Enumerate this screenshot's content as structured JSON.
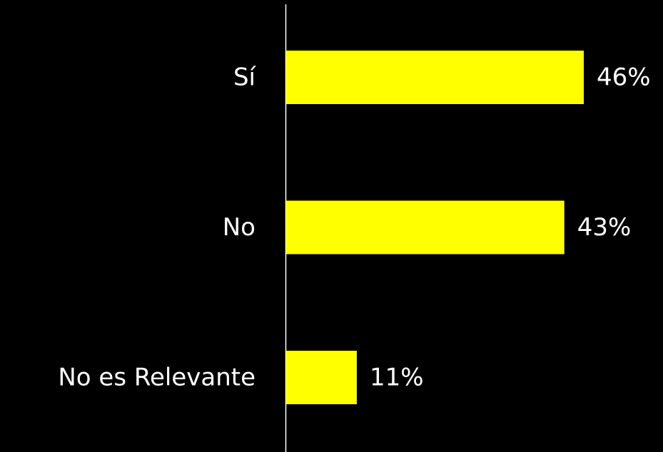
{
  "chart_data": {
    "type": "bar",
    "orientation": "horizontal",
    "categories": [
      "Sí",
      "No",
      "No es Relevante"
    ],
    "values": [
      46,
      43,
      11
    ],
    "value_labels": [
      "46%",
      "43%",
      "11%"
    ],
    "unit": "%",
    "xlim": [
      0,
      50
    ],
    "grid": false,
    "legend": "none",
    "title": "",
    "xlabel": "",
    "ylabel": ""
  },
  "colors": {
    "background": "#000000",
    "bar": "#FFFF00",
    "text": "#FFFFFF",
    "axis": "#FFFFFF"
  }
}
